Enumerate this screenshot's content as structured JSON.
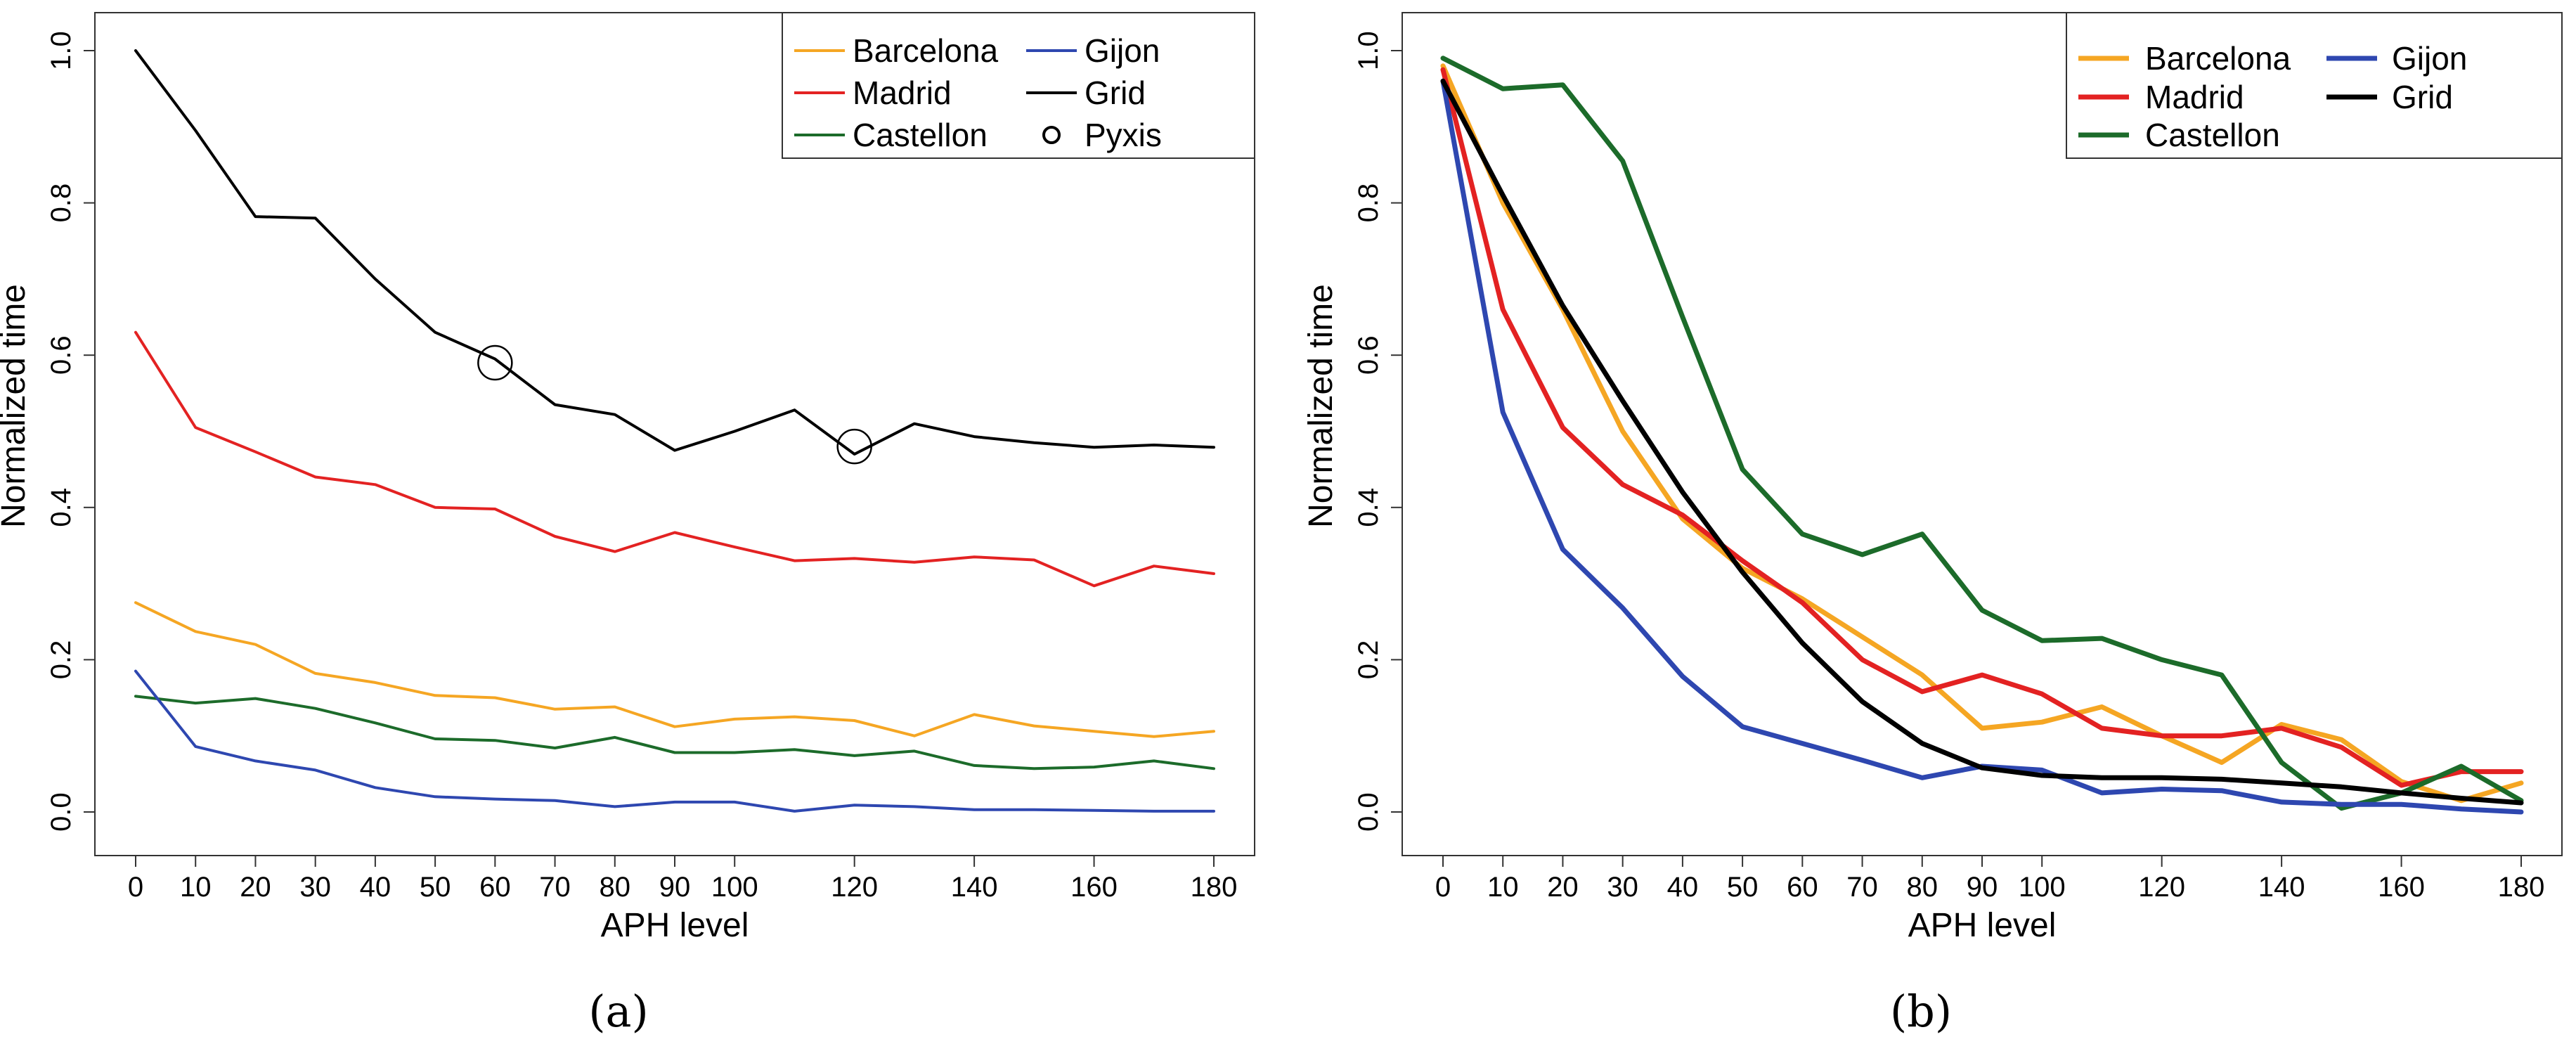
{
  "chart_data": [
    {
      "type": "line",
      "panel_label": "(a)",
      "xlabel": "APH level",
      "ylabel": "Normalized time",
      "xlim": [
        -5,
        185
      ],
      "ylim": [
        -0.03,
        1.03
      ],
      "x_ticks": [
        0,
        10,
        20,
        30,
        40,
        50,
        60,
        70,
        80,
        90,
        100,
        120,
        140,
        160,
        180
      ],
      "x_tick_labels": [
        "0",
        "10",
        "20",
        "30",
        "40",
        "50",
        "60",
        "70",
        "80",
        "90",
        "100",
        "120",
        "140",
        "160",
        "180"
      ],
      "y_ticks": [
        0.0,
        0.2,
        0.4,
        0.6,
        0.8,
        1.0
      ],
      "y_tick_labels": [
        "0.0",
        "0.2",
        "0.4",
        "0.6",
        "0.8",
        "1.0"
      ],
      "grid": false,
      "legend_position": "top-right",
      "legend": [
        {
          "label": "Barcelona",
          "kind": "line",
          "color": "#f5a623"
        },
        {
          "label": "Madrid",
          "kind": "line",
          "color": "#e32222"
        },
        {
          "label": "Castellon",
          "kind": "line",
          "color": "#1c6b2a"
        },
        {
          "label": "Gijon",
          "kind": "line",
          "color": "#2e47b0"
        },
        {
          "label": "Grid",
          "kind": "line",
          "color": "#000000"
        },
        {
          "label": "Pyxis",
          "kind": "circle",
          "color": "#000000"
        }
      ],
      "x": [
        0,
        10,
        20,
        30,
        40,
        50,
        60,
        70,
        80,
        90,
        100,
        110,
        120,
        130,
        140,
        150,
        160,
        170,
        180
      ],
      "series": [
        {
          "name": "Barcelona",
          "color": "#f5a623",
          "values": [
            0.275,
            0.237,
            0.22,
            0.182,
            0.17,
            0.153,
            0.15,
            0.135,
            0.138,
            0.112,
            0.122,
            0.125,
            0.12,
            0.1,
            0.128,
            0.113,
            0.106,
            0.099,
            0.106
          ]
        },
        {
          "name": "Madrid",
          "color": "#e32222",
          "values": [
            0.63,
            0.505,
            0.473,
            0.44,
            0.43,
            0.4,
            0.398,
            0.362,
            0.342,
            0.367,
            0.348,
            0.33,
            0.333,
            0.328,
            0.335,
            0.331,
            0.297,
            0.323,
            0.313
          ]
        },
        {
          "name": "Castellon",
          "color": "#1c6b2a",
          "values": [
            0.152,
            0.143,
            0.149,
            0.136,
            0.117,
            0.096,
            0.094,
            0.084,
            0.098,
            0.078,
            0.078,
            0.082,
            0.074,
            0.08,
            0.061,
            0.057,
            0.059,
            0.067,
            0.057
          ]
        },
        {
          "name": "Gijon",
          "color": "#2e47b0",
          "values": [
            0.185,
            0.086,
            0.067,
            0.055,
            0.032,
            0.02,
            0.017,
            0.015,
            0.007,
            0.013,
            0.013,
            0.001,
            0.009,
            0.007,
            0.003,
            0.003,
            0.002,
            0.001,
            0.001
          ]
        },
        {
          "name": "Grid",
          "color": "#000000",
          "values": [
            1.0,
            0.895,
            0.782,
            0.78,
            0.7,
            0.63,
            0.595,
            0.535,
            0.522,
            0.475,
            0.5,
            0.528,
            0.47,
            0.51,
            0.493,
            0.485,
            0.479,
            0.482,
            0.479
          ]
        }
      ],
      "markers": [
        {
          "name": "Pyxis",
          "points": [
            [
              60,
              0.59
            ],
            [
              120,
              0.48
            ]
          ]
        }
      ]
    },
    {
      "type": "line",
      "panel_label": "(b)",
      "xlabel": "APH level",
      "ylabel": "Normalized time",
      "xlim": [
        -5,
        185
      ],
      "ylim": [
        -0.03,
        1.03
      ],
      "x_ticks": [
        0,
        10,
        20,
        30,
        40,
        50,
        60,
        70,
        80,
        90,
        100,
        120,
        140,
        160,
        180
      ],
      "x_tick_labels": [
        "0",
        "10",
        "20",
        "30",
        "40",
        "50",
        "60",
        "70",
        "80",
        "90",
        "100",
        "120",
        "140",
        "160",
        "180"
      ],
      "y_ticks": [
        0.0,
        0.2,
        0.4,
        0.6,
        0.8,
        1.0
      ],
      "y_tick_labels": [
        "0.0",
        "0.2",
        "0.4",
        "0.6",
        "0.8",
        "1.0"
      ],
      "grid": false,
      "legend_position": "top-right",
      "legend": [
        {
          "label": "Barcelona",
          "kind": "line",
          "color": "#f5a623"
        },
        {
          "label": "Madrid",
          "kind": "line",
          "color": "#e32222"
        },
        {
          "label": "Castellon",
          "kind": "line",
          "color": "#1c6b2a"
        },
        {
          "label": "Gijon",
          "kind": "line",
          "color": "#2e47b0"
        },
        {
          "label": "Grid",
          "kind": "line",
          "color": "#000000"
        }
      ],
      "x": [
        0,
        10,
        20,
        30,
        40,
        50,
        60,
        70,
        80,
        90,
        100,
        110,
        120,
        130,
        140,
        150,
        160,
        170,
        180
      ],
      "series": [
        {
          "name": "Barcelona",
          "color": "#f5a623",
          "values": [
            0.98,
            0.8,
            0.66,
            0.5,
            0.385,
            0.32,
            0.28,
            0.23,
            0.18,
            0.11,
            0.118,
            0.138,
            0.1,
            0.065,
            0.115,
            0.095,
            0.04,
            0.015,
            0.038
          ]
        },
        {
          "name": "Madrid",
          "color": "#e32222",
          "values": [
            0.975,
            0.66,
            0.505,
            0.43,
            0.39,
            0.33,
            0.275,
            0.2,
            0.158,
            0.18,
            0.155,
            0.11,
            0.1,
            0.1,
            0.11,
            0.085,
            0.035,
            0.053,
            0.053
          ]
        },
        {
          "name": "Castellon",
          "color": "#1c6b2a",
          "values": [
            0.99,
            0.95,
            0.955,
            0.855,
            0.65,
            0.45,
            0.365,
            0.338,
            0.365,
            0.265,
            0.225,
            0.228,
            0.2,
            0.18,
            0.065,
            0.005,
            0.025,
            0.06,
            0.015
          ]
        },
        {
          "name": "Gijon",
          "color": "#2e47b0",
          "values": [
            0.96,
            0.525,
            0.345,
            0.268,
            0.178,
            0.112,
            0.09,
            0.068,
            0.045,
            0.06,
            0.055,
            0.025,
            0.03,
            0.028,
            0.013,
            0.01,
            0.01,
            0.004,
            0.0
          ]
        },
        {
          "name": "Grid",
          "color": "#000000",
          "values": [
            0.96,
            0.81,
            0.665,
            0.54,
            0.42,
            0.315,
            0.222,
            0.145,
            0.09,
            0.058,
            0.048,
            0.045,
            0.045,
            0.043,
            0.038,
            0.033,
            0.025,
            0.018,
            0.012
          ]
        }
      ]
    }
  ]
}
